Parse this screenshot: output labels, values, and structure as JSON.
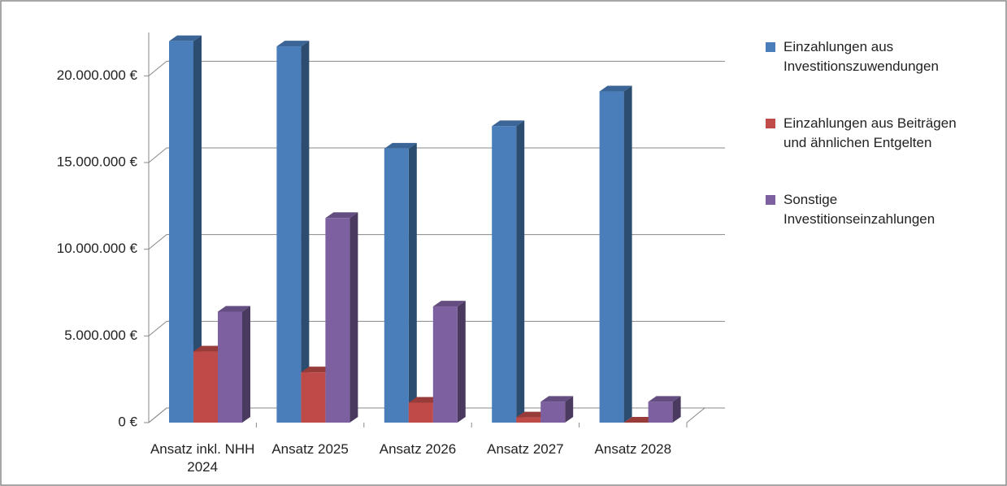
{
  "chart_data": {
    "type": "bar",
    "categories": [
      "Ansatz inkl. NHH 2024",
      "Ansatz 2025",
      "Ansatz 2026",
      "Ansatz 2027",
      "Ansatz 2028"
    ],
    "series": [
      {
        "name": "Einzahlungen aus Investitionszuwendungen",
        "color": "#4a7ebb",
        "values": [
          22000000,
          21700000,
          15800000,
          17100000,
          19100000
        ]
      },
      {
        "name": "Einzahlungen aus Beiträgen und ähnlichen Entgelten",
        "color": "#be4b48",
        "values": [
          4100000,
          2900000,
          1150000,
          300000,
          0
        ]
      },
      {
        "name": "Sonstige Investitionseinzahlungen",
        "color": "#7d60a0",
        "values": [
          6400000,
          11800000,
          6700000,
          1200000,
          1200000
        ]
      }
    ],
    "ylim": [
      0,
      22500000
    ],
    "yticks": [
      {
        "value": 0,
        "label": "0 €"
      },
      {
        "value": 5000000,
        "label": "5.000.000 €"
      },
      {
        "value": 10000000,
        "label": "10.000.000 €"
      },
      {
        "value": 15000000,
        "label": "15.000.000 €"
      },
      {
        "value": 20000000,
        "label": "20.000.000 €"
      }
    ],
    "grid": true
  }
}
